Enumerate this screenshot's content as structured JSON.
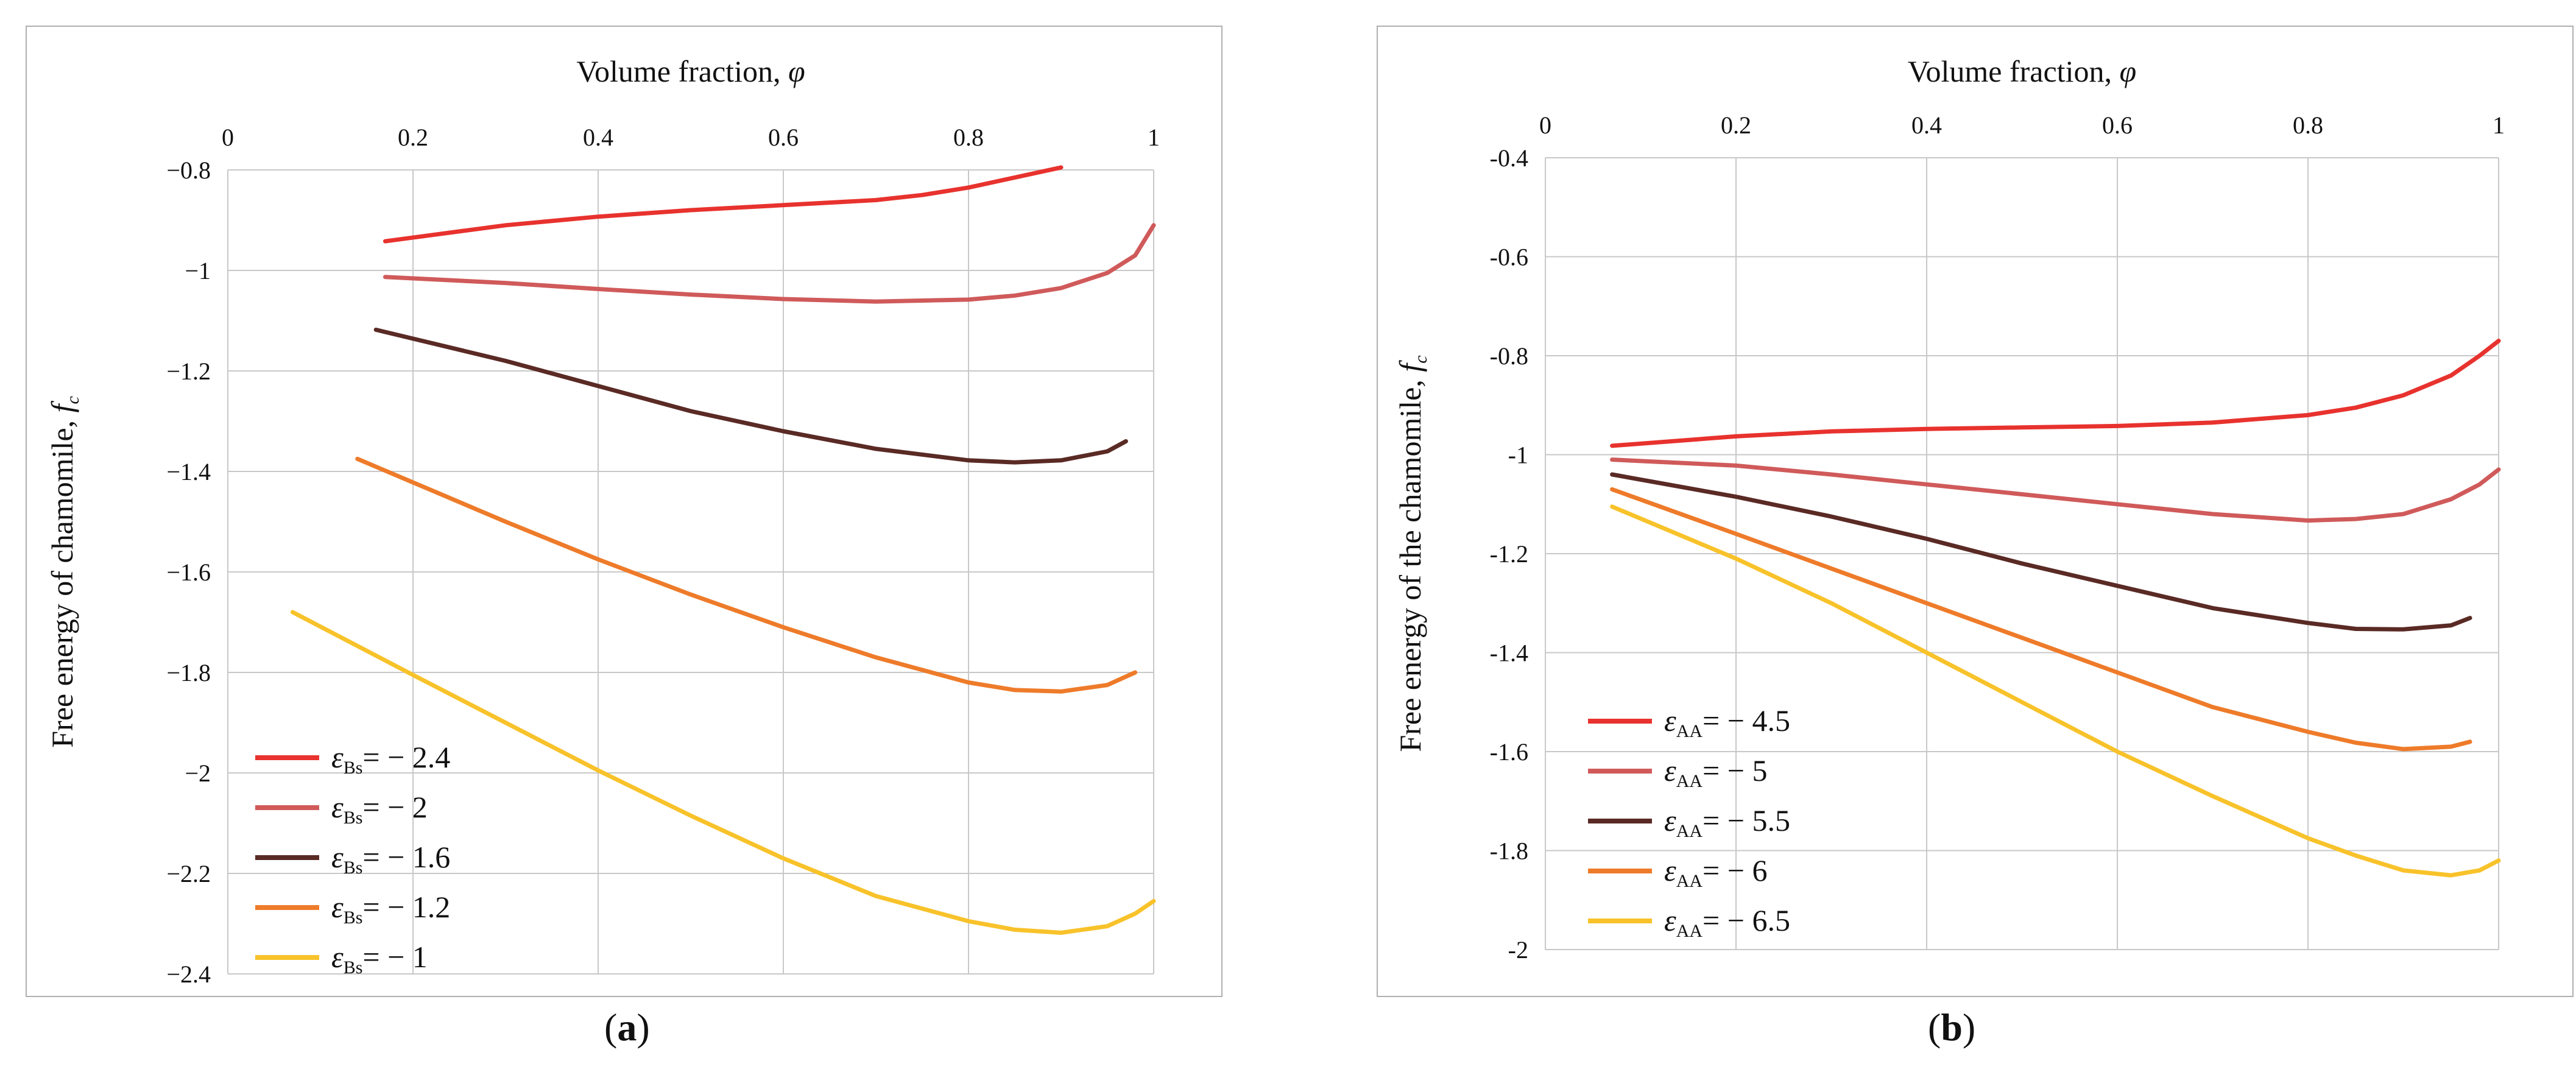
{
  "chart_data": [
    {
      "type": "line",
      "panel_label": "a",
      "xlabel": "Volume fraction, ",
      "xlabel_symbol": "φ",
      "ylabel": "Free energy of chamomile, ",
      "ylabel_symbol": "f",
      "ylabel_sub": "c",
      "xlim": [
        0,
        1
      ],
      "ylim": [
        -2.4,
        -0.8
      ],
      "xticks": [
        0,
        0.2,
        0.4,
        0.6,
        0.8,
        1
      ],
      "xtick_labels": [
        "0",
        "0.2",
        "0.4",
        "0.6",
        "0.8",
        "1"
      ],
      "yticks": [
        -0.8,
        -1,
        -1.2,
        -1.4,
        -1.6,
        -1.8,
        -2,
        -2.2,
        -2.4
      ],
      "ytick_labels": [
        "−0.8",
        "−1",
        "−1.2",
        "−1.4",
        "−1.6",
        "−1.8",
        "−2",
        "−2.2",
        "−2.4"
      ],
      "x_axis_position": "top",
      "legend_position": "bottom-left",
      "legend_symbol": "ε",
      "legend_sub": "Bs",
      "series": [
        {
          "name": "= − 2.4",
          "color": "#e8322e",
          "x": [
            0.17,
            0.3,
            0.4,
            0.5,
            0.6,
            0.7,
            0.75,
            0.8,
            0.85,
            0.9
          ],
          "y": [
            -0.942,
            -0.91,
            -0.893,
            -0.88,
            -0.87,
            -0.86,
            -0.85,
            -0.835,
            -0.815,
            -0.795
          ]
        },
        {
          "name": "= − 2",
          "color": "#d05a5a",
          "x": [
            0.17,
            0.3,
            0.4,
            0.5,
            0.6,
            0.7,
            0.8,
            0.85,
            0.9,
            0.95,
            0.98,
            1.0
          ],
          "y": [
            -1.013,
            -1.025,
            -1.037,
            -1.048,
            -1.057,
            -1.062,
            -1.058,
            -1.05,
            -1.035,
            -1.005,
            -0.97,
            -0.91
          ]
        },
        {
          "name": "= − 1.6",
          "color": "#5a2a25",
          "x": [
            0.16,
            0.3,
            0.4,
            0.5,
            0.6,
            0.7,
            0.8,
            0.85,
            0.9,
            0.95,
            0.97
          ],
          "y": [
            -1.118,
            -1.18,
            -1.23,
            -1.28,
            -1.32,
            -1.355,
            -1.378,
            -1.382,
            -1.378,
            -1.36,
            -1.34
          ]
        },
        {
          "name": "= − 1.2",
          "color": "#ee7b2a",
          "x": [
            0.14,
            0.3,
            0.4,
            0.5,
            0.6,
            0.7,
            0.8,
            0.85,
            0.9,
            0.95,
            0.98
          ],
          "y": [
            -1.375,
            -1.5,
            -1.575,
            -1.645,
            -1.71,
            -1.77,
            -1.82,
            -1.835,
            -1.838,
            -1.825,
            -1.8
          ]
        },
        {
          "name": "= − 1",
          "color": "#f8c22a",
          "x": [
            0.07,
            0.2,
            0.3,
            0.4,
            0.5,
            0.6,
            0.7,
            0.8,
            0.85,
            0.9,
            0.95,
            0.98,
            1.0
          ],
          "y": [
            -1.68,
            -1.805,
            -1.9,
            -1.995,
            -2.085,
            -2.17,
            -2.245,
            -2.295,
            -2.312,
            -2.318,
            -2.305,
            -2.28,
            -2.255
          ]
        }
      ]
    },
    {
      "type": "line",
      "panel_label": "b",
      "xlabel": "Volume fraction, ",
      "xlabel_symbol": "φ",
      "ylabel": "Free energy of the chamomile, ",
      "ylabel_symbol": "f",
      "ylabel_sub": "c",
      "xlim": [
        0,
        1
      ],
      "ylim": [
        -2,
        -0.4
      ],
      "xticks": [
        0,
        0.2,
        0.4,
        0.6,
        0.8,
        1
      ],
      "xtick_labels": [
        "0",
        "0.2",
        "0.4",
        "0.6",
        "0.8",
        "1"
      ],
      "yticks": [
        -0.4,
        -0.6,
        -0.8,
        -1,
        -1.2,
        -1.4,
        -1.6,
        -1.8,
        -2
      ],
      "ytick_labels": [
        "-0.4",
        "-0.6",
        "-0.8",
        "-1",
        "-1.2",
        "-1.4",
        "-1.6",
        "-1.8",
        "-2"
      ],
      "x_axis_position": "top",
      "legend_position": "bottom-left",
      "legend_symbol": "ε",
      "legend_sub": "AA",
      "series": [
        {
          "name": "= − 4.5",
          "color": "#e8322e",
          "x": [
            0.07,
            0.2,
            0.3,
            0.4,
            0.5,
            0.6,
            0.7,
            0.8,
            0.85,
            0.9,
            0.95,
            0.98,
            1.0
          ],
          "y": [
            -0.982,
            -0.963,
            -0.953,
            -0.948,
            -0.945,
            -0.942,
            -0.935,
            -0.92,
            -0.905,
            -0.88,
            -0.84,
            -0.8,
            -0.77
          ]
        },
        {
          "name": "= − 5",
          "color": "#d05a5a",
          "x": [
            0.07,
            0.2,
            0.3,
            0.4,
            0.5,
            0.6,
            0.7,
            0.8,
            0.85,
            0.9,
            0.95,
            0.98,
            1.0
          ],
          "y": [
            -1.01,
            -1.022,
            -1.04,
            -1.06,
            -1.08,
            -1.1,
            -1.12,
            -1.133,
            -1.13,
            -1.12,
            -1.09,
            -1.06,
            -1.03
          ]
        },
        {
          "name": "= − 5.5",
          "color": "#5a2a25",
          "x": [
            0.07,
            0.2,
            0.3,
            0.4,
            0.5,
            0.6,
            0.7,
            0.8,
            0.85,
            0.9,
            0.95,
            0.97
          ],
          "y": [
            -1.04,
            -1.085,
            -1.125,
            -1.17,
            -1.22,
            -1.265,
            -1.31,
            -1.34,
            -1.352,
            -1.353,
            -1.345,
            -1.33
          ]
        },
        {
          "name": "= − 6",
          "color": "#ee7b2a",
          "x": [
            0.07,
            0.2,
            0.3,
            0.4,
            0.5,
            0.6,
            0.7,
            0.8,
            0.85,
            0.9,
            0.95,
            0.97
          ],
          "y": [
            -1.07,
            -1.16,
            -1.23,
            -1.3,
            -1.37,
            -1.44,
            -1.51,
            -1.56,
            -1.582,
            -1.595,
            -1.59,
            -1.58
          ]
        },
        {
          "name": "= − 6.5",
          "color": "#f8c22a",
          "x": [
            0.07,
            0.2,
            0.3,
            0.4,
            0.5,
            0.6,
            0.7,
            0.8,
            0.85,
            0.9,
            0.95,
            0.98,
            1.0
          ],
          "y": [
            -1.105,
            -1.21,
            -1.3,
            -1.4,
            -1.5,
            -1.6,
            -1.69,
            -1.775,
            -1.81,
            -1.84,
            -1.85,
            -1.84,
            -1.82
          ]
        }
      ]
    }
  ],
  "captions": {
    "a": "a",
    "b": "b"
  }
}
